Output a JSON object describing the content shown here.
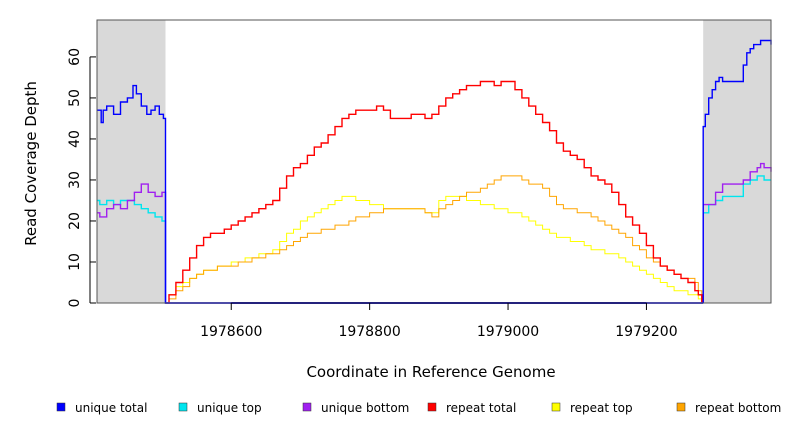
{
  "chart_data": {
    "type": "line",
    "xlabel": "Coordinate in Reference Genome",
    "ylabel": "Read Coverage Depth",
    "xlim": [
      1978406,
      1979380
    ],
    "ylim": [
      0,
      69
    ],
    "x_ticks": [
      1978600,
      1978800,
      1979000,
      1979200
    ],
    "x_tick_labels": [
      "1978600",
      "1978800",
      "1979000",
      "1979200"
    ],
    "y_ticks": [
      0,
      10,
      20,
      30,
      40,
      50,
      60
    ],
    "y_tick_labels": [
      "0",
      "10",
      "20",
      "30",
      "40",
      "50",
      "60"
    ],
    "shaded_regions": [
      [
        1978406,
        1978505
      ],
      [
        1979282,
        1979380
      ]
    ],
    "grid": false,
    "legend_position": "bottom",
    "series": [
      {
        "name": "unique total",
        "color": "#0000ff",
        "segments": [
          {
            "x": [
              1978406,
              1978412,
              1978415,
              1978420,
              1978430,
              1978440,
              1978450,
              1978458,
              1978463,
              1978470,
              1978478,
              1978484,
              1978490,
              1978496,
              1978502,
              1978505,
              1978505,
              1979282
            ],
            "y": [
              47,
              44,
              47,
              48,
              46,
              49,
              50,
              53,
              51,
              48,
              46,
              47,
              48,
              46,
              45,
              45,
              0,
              0
            ]
          },
          {
            "x": [
              1979282,
              1979282,
              1979285,
              1979290,
              1979295,
              1979300,
              1979305,
              1979310,
              1979315,
              1979320,
              1979325,
              1979335,
              1979340,
              1979345,
              1979350,
              1979355,
              1979360,
              1979365,
              1979370,
              1979380
            ],
            "y": [
              0,
              43,
              46,
              50,
              52,
              54,
              55,
              54,
              54,
              54,
              54,
              54,
              58,
              61,
              62,
              63,
              63,
              64,
              64,
              63
            ]
          }
        ]
      },
      {
        "name": "unique top",
        "color": "#00e5ee",
        "segments": [
          {
            "x": [
              1978406,
              1978410,
              1978420,
              1978430,
              1978440,
              1978450,
              1978460,
              1978470,
              1978480,
              1978490,
              1978500,
              1978505,
              1978505,
              1979282
            ],
            "y": [
              25,
              24,
              25,
              24,
              25,
              25,
              24,
              23,
              22,
              21,
              20,
              19,
              0,
              0
            ]
          },
          {
            "x": [
              1979282,
              1979282,
              1979290,
              1979300,
              1979310,
              1979320,
              1979330,
              1979340,
              1979350,
              1979360,
              1979370,
              1979380
            ],
            "y": [
              0,
              22,
              24,
              25,
              26,
              26,
              26,
              29,
              30,
              31,
              30,
              30
            ]
          }
        ]
      },
      {
        "name": "unique bottom",
        "color": "#a020f0",
        "segments": [
          {
            "x": [
              1978406,
              1978410,
              1978420,
              1978430,
              1978440,
              1978450,
              1978460,
              1978470,
              1978480,
              1978490,
              1978500,
              1978505,
              1978505,
              1979282
            ],
            "y": [
              22,
              21,
              23,
              24,
              23,
              25,
              27,
              29,
              27,
              26,
              27,
              26,
              0,
              0
            ]
          },
          {
            "x": [
              1979282,
              1979282,
              1979290,
              1979300,
              1979310,
              1979320,
              1979330,
              1979340,
              1979350,
              1979360,
              1979365,
              1979370,
              1979380
            ],
            "y": [
              0,
              24,
              24,
              27,
              29,
              29,
              29,
              30,
              32,
              33,
              34,
              33,
              32
            ]
          }
        ]
      },
      {
        "name": "repeat total",
        "color": "#ff0000",
        "x": [
          1978505,
          1978510,
          1978520,
          1978530,
          1978540,
          1978550,
          1978560,
          1978570,
          1978580,
          1978590,
          1978600,
          1978610,
          1978620,
          1978630,
          1978640,
          1978650,
          1978660,
          1978670,
          1978680,
          1978690,
          1978700,
          1978710,
          1978720,
          1978730,
          1978740,
          1978750,
          1978760,
          1978770,
          1978780,
          1978790,
          1978800,
          1978810,
          1978820,
          1978830,
          1978840,
          1978850,
          1978860,
          1978870,
          1978880,
          1978890,
          1978900,
          1978910,
          1978920,
          1978930,
          1978940,
          1978950,
          1978960,
          1978970,
          1978980,
          1978990,
          1979000,
          1979010,
          1979020,
          1979030,
          1979040,
          1979050,
          1979060,
          1979070,
          1979080,
          1979090,
          1979100,
          1979110,
          1979120,
          1979130,
          1979140,
          1979150,
          1979160,
          1979170,
          1979180,
          1979190,
          1979200,
          1979210,
          1979220,
          1979230,
          1979240,
          1979250,
          1979260,
          1979270,
          1979275,
          1979280
        ],
        "y": [
          0,
          2,
          5,
          8,
          11,
          14,
          16,
          17,
          17,
          18,
          19,
          20,
          21,
          22,
          23,
          24,
          25,
          28,
          31,
          33,
          34,
          36,
          38,
          39,
          41,
          43,
          45,
          46,
          47,
          47,
          47,
          48,
          47,
          45,
          45,
          45,
          46,
          46,
          45,
          46,
          48,
          50,
          51,
          52,
          53,
          53,
          54,
          54,
          53,
          54,
          54,
          52,
          50,
          48,
          46,
          44,
          42,
          39,
          37,
          36,
          35,
          33,
          31,
          30,
          29,
          27,
          24,
          21,
          19,
          17,
          14,
          11,
          9,
          8,
          7,
          6,
          5,
          3,
          2,
          0
        ]
      },
      {
        "name": "repeat top",
        "color": "#ffff00",
        "x": [
          1978505,
          1978510,
          1978520,
          1978530,
          1978540,
          1978550,
          1978560,
          1978570,
          1978580,
          1978590,
          1978600,
          1978610,
          1978620,
          1978630,
          1978640,
          1978650,
          1978660,
          1978670,
          1978680,
          1978690,
          1978700,
          1978710,
          1978720,
          1978730,
          1978740,
          1978750,
          1978760,
          1978770,
          1978780,
          1978790,
          1978800,
          1978810,
          1978820,
          1978830,
          1978840,
          1978850,
          1978860,
          1978870,
          1978880,
          1978890,
          1978900,
          1978910,
          1978920,
          1978930,
          1978940,
          1978950,
          1978960,
          1978970,
          1978980,
          1978990,
          1979000,
          1979010,
          1979020,
          1979030,
          1979040,
          1979050,
          1979060,
          1979070,
          1979080,
          1979090,
          1979100,
          1979110,
          1979120,
          1979130,
          1979140,
          1979150,
          1979160,
          1979170,
          1979180,
          1979190,
          1979200,
          1979210,
          1979220,
          1979230,
          1979240,
          1979250,
          1979260,
          1979270,
          1979275,
          1979280
        ],
        "y": [
          0,
          2,
          4,
          5,
          6,
          7,
          8,
          8,
          9,
          9,
          10,
          10,
          11,
          11,
          12,
          12,
          13,
          15,
          17,
          18,
          20,
          21,
          22,
          23,
          24,
          25,
          26,
          26,
          25,
          25,
          24,
          24,
          23,
          23,
          23,
          23,
          23,
          23,
          22,
          22,
          25,
          26,
          26,
          26,
          25,
          25,
          24,
          24,
          23,
          23,
          22,
          22,
          21,
          20,
          19,
          18,
          17,
          16,
          16,
          15,
          15,
          14,
          13,
          13,
          12,
          12,
          11,
          10,
          9,
          8,
          7,
          6,
          5,
          4,
          3,
          3,
          2,
          2,
          1,
          0
        ]
      },
      {
        "name": "repeat bottom",
        "color": "#ffa500",
        "x": [
          1978406,
          1978505,
          1978510,
          1978520,
          1978530,
          1978540,
          1978550,
          1978560,
          1978570,
          1978580,
          1978590,
          1978600,
          1978610,
          1978620,
          1978630,
          1978640,
          1978650,
          1978660,
          1978670,
          1978680,
          1978690,
          1978700,
          1978710,
          1978720,
          1978730,
          1978740,
          1978750,
          1978760,
          1978770,
          1978780,
          1978790,
          1978800,
          1978810,
          1978820,
          1978830,
          1978840,
          1978850,
          1978860,
          1978870,
          1978880,
          1978890,
          1978900,
          1978910,
          1978920,
          1978930,
          1978940,
          1978950,
          1978960,
          1978970,
          1978980,
          1978990,
          1979000,
          1979010,
          1979020,
          1979030,
          1979040,
          1979050,
          1979060,
          1979070,
          1979080,
          1979090,
          1979100,
          1979110,
          1979120,
          1979130,
          1979140,
          1979150,
          1979160,
          1979170,
          1979180,
          1979190,
          1979200,
          1979210,
          1979220,
          1979230,
          1979240,
          1979250,
          1979260,
          1979270,
          1979275,
          1979280,
          1979380
        ],
        "y": [
          0,
          0,
          1,
          3,
          4,
          6,
          7,
          8,
          8,
          9,
          9,
          9,
          10,
          10,
          11,
          11,
          12,
          12,
          13,
          14,
          15,
          16,
          17,
          17,
          18,
          18,
          19,
          19,
          20,
          21,
          21,
          22,
          22,
          23,
          23,
          23,
          23,
          23,
          23,
          22,
          21,
          23,
          24,
          25,
          26,
          27,
          27,
          28,
          29,
          30,
          31,
          31,
          31,
          30,
          29,
          29,
          28,
          26,
          24,
          23,
          23,
          22,
          22,
          21,
          20,
          19,
          18,
          17,
          16,
          14,
          13,
          11,
          10,
          9,
          8,
          7,
          6,
          6,
          5,
          3,
          0,
          0
        ]
      }
    ]
  }
}
